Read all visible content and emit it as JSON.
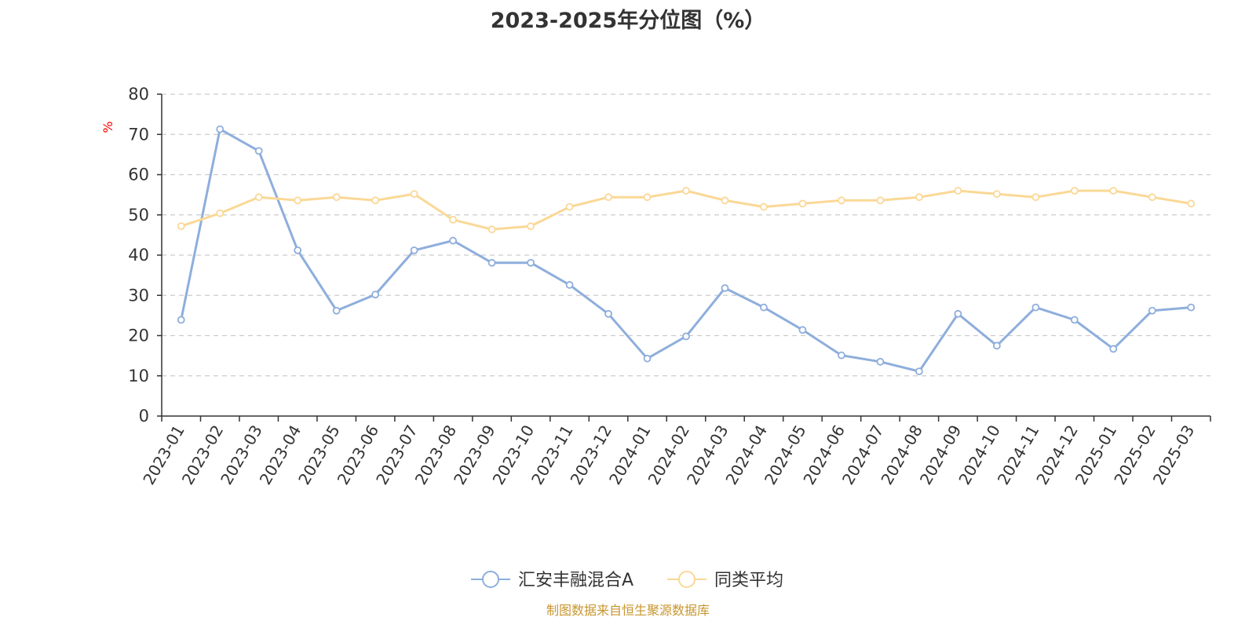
{
  "title": "2023-2025年分位图（%）",
  "source_note": "制图数据来自恒生聚源数据库",
  "colors": {
    "series_a": "#8eaedc",
    "series_b": "#fad896",
    "axis": "#333333",
    "grid": "#cccccc",
    "text": "#333333",
    "unit": "#ff0000",
    "source": "#c8962e"
  },
  "chart_data": {
    "type": "line",
    "title": "2023-2025年分位图（%）",
    "ylabel": "%",
    "xlabel": "",
    "ylim": [
      0,
      80
    ],
    "yticks": [
      0,
      10,
      20,
      30,
      40,
      50,
      60,
      70,
      80
    ],
    "grid": true,
    "legend_position": "bottom",
    "categories": [
      "2023-01",
      "2023-02",
      "2023-03",
      "2023-04",
      "2023-05",
      "2023-06",
      "2023-07",
      "2023-08",
      "2023-09",
      "2023-10",
      "2023-11",
      "2023-12",
      "2024-01",
      "2024-02",
      "2024-03",
      "2024-04",
      "2024-05",
      "2024-06",
      "2024-07",
      "2024-08",
      "2024-09",
      "2024-10",
      "2024-11",
      "2024-12",
      "2025-01",
      "2025-02",
      "2025-03"
    ],
    "series": [
      {
        "name": "汇安丰融混合A",
        "values": [
          23.9,
          71.3,
          65.9,
          41.2,
          26.2,
          30.2,
          41.2,
          43.6,
          38.1,
          38.1,
          32.6,
          25.4,
          14.3,
          19.8,
          31.8,
          27.0,
          21.4,
          15.1,
          13.5,
          11.1,
          25.4,
          17.5,
          27.0,
          23.9,
          16.7,
          26.2,
          27.0
        ]
      },
      {
        "name": "同类平均",
        "values": [
          47.2,
          50.4,
          54.4,
          53.6,
          54.4,
          53.6,
          55.2,
          48.8,
          46.4,
          47.2,
          52.0,
          54.4,
          54.4,
          56.0,
          53.6,
          52.0,
          52.8,
          53.6,
          53.6,
          54.4,
          56.0,
          55.2,
          54.4,
          56.0,
          56.0,
          54.4,
          52.8
        ]
      }
    ]
  }
}
